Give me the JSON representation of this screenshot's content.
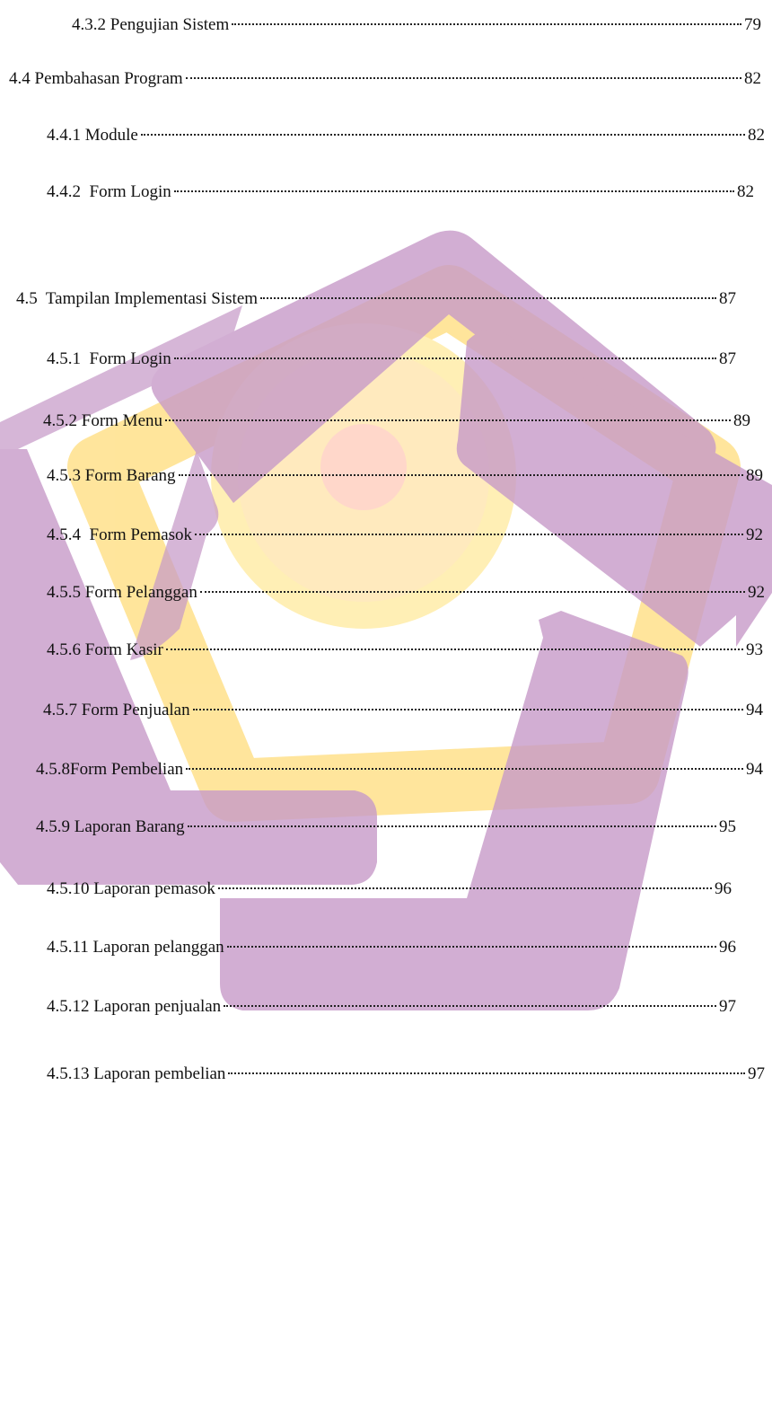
{
  "toc": {
    "entries": [
      {
        "label": "4.3.2 Pengujian Sistem",
        "page": "79"
      },
      {
        "label": "4.4 Pembahasan Program",
        "page": "82"
      },
      {
        "label": "4.4.1 Module",
        "page": "82"
      },
      {
        "label": "4.4.2  Form Login",
        "page": "82"
      },
      {
        "label": "4.5  Tampilan Implementasi Sistem",
        "page": "87"
      },
      {
        "label": "4.5.1  Form Login",
        "page": "87"
      },
      {
        "label": "4.5.2 Form Menu",
        "page": "89"
      },
      {
        "label": "4.5.3 Form Barang",
        "page": "89"
      },
      {
        "label": "4.5.4  Form Pemasok",
        "page": "92"
      },
      {
        "label": "4.5.5 Form Pelanggan",
        "page": "92"
      },
      {
        "label": "4.5.6 Form Kasir",
        "page": "93"
      },
      {
        "label": "4.5.7 Form Penjualan",
        "page": "94"
      },
      {
        "label": "4.5.8Form Pembelian",
        "page": "94"
      },
      {
        "label": "4.5.9 Laporan Barang",
        "page": "95"
      },
      {
        "label": "4.5.10 Laporan pemasok",
        "page": "96"
      },
      {
        "label": "4.5.11 Laporan pelanggan",
        "page": "96"
      },
      {
        "label": "4.5.12 Laporan penjualan",
        "page": "97"
      },
      {
        "label": "4.5.13 Laporan pembelian",
        "page": "97"
      }
    ]
  }
}
